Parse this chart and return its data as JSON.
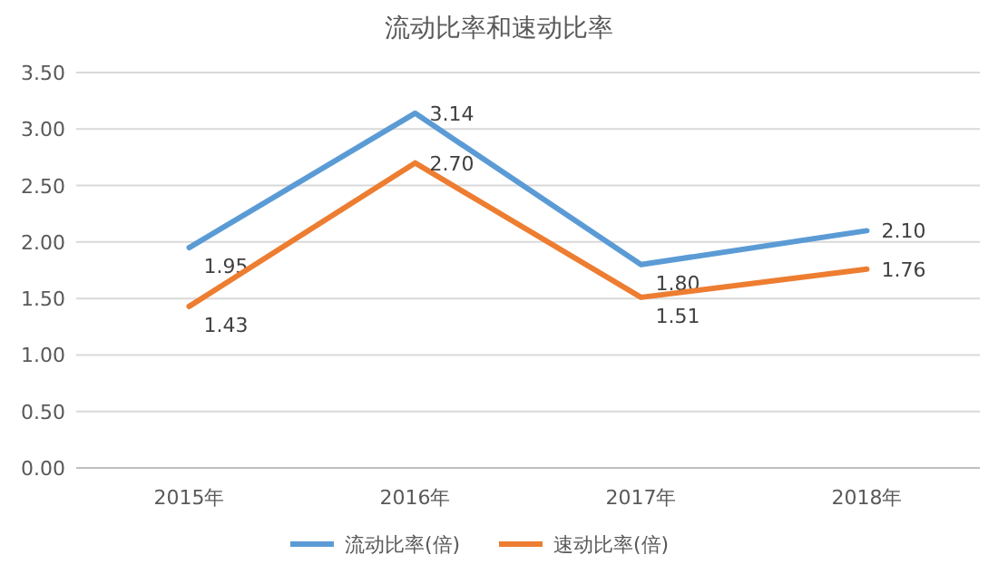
{
  "chart_data": {
    "type": "line",
    "title": "流动比率和速动比率",
    "categories": [
      "2015年",
      "2016年",
      "2017年",
      "2018年"
    ],
    "series": [
      {
        "name": "流动比率(倍)",
        "color": "#5b9bd5",
        "values": [
          1.95,
          3.14,
          1.8,
          2.1
        ],
        "value_labels": [
          "1.95",
          "3.14",
          "1.80",
          "2.10"
        ]
      },
      {
        "name": "速动比率(倍)",
        "color": "#ed7d31",
        "values": [
          1.43,
          2.7,
          1.51,
          1.76
        ],
        "value_labels": [
          "1.43",
          "2.70",
          "1.51",
          "1.76"
        ]
      }
    ],
    "ylim": [
      0,
      3.5
    ],
    "yticks": [
      {
        "value": 0,
        "label": "0.00"
      },
      {
        "value": 0.5,
        "label": "0.50"
      },
      {
        "value": 1,
        "label": "1.00"
      },
      {
        "value": 1.5,
        "label": "1.50"
      },
      {
        "value": 2,
        "label": "2.00"
      },
      {
        "value": 2.5,
        "label": "2.50"
      },
      {
        "value": 3,
        "label": "3.00"
      },
      {
        "value": 3.5,
        "label": "3.50"
      }
    ],
    "grid": "y",
    "legend": "bottom",
    "marker": "none",
    "line_style": "solid"
  }
}
